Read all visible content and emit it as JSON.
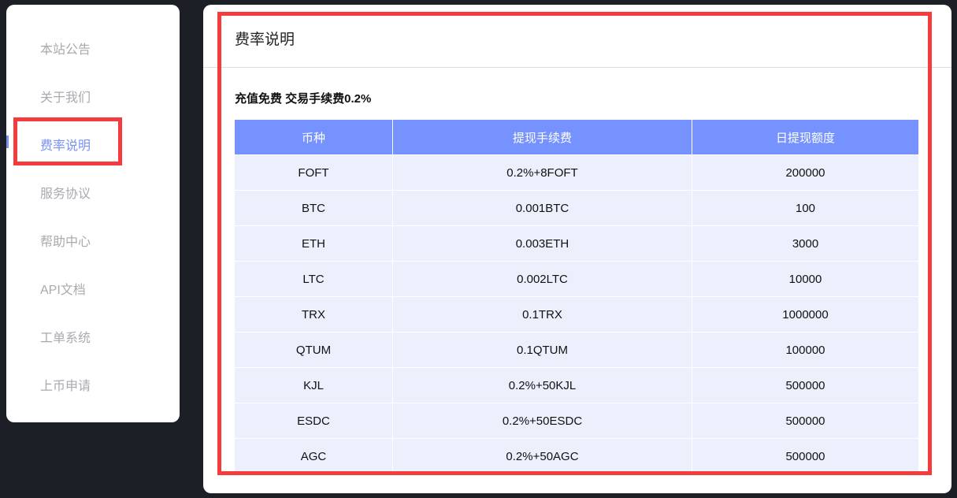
{
  "sidebar": {
    "items": [
      {
        "label": "本站公告"
      },
      {
        "label": "关于我们"
      },
      {
        "label": "费率说明",
        "active": true
      },
      {
        "label": "服务协议"
      },
      {
        "label": "帮助中心"
      },
      {
        "label": "API文档"
      },
      {
        "label": "工单系统"
      },
      {
        "label": "上币申请"
      }
    ]
  },
  "main": {
    "title": "费率说明",
    "subtitle": "充值免费 交易手续费0.2%",
    "table": {
      "headers": [
        "币种",
        "提现手续费",
        "日提现额度"
      ],
      "rows": [
        [
          "FOFT",
          "0.2%+8FOFT",
          "200000"
        ],
        [
          "BTC",
          "0.001BTC",
          "100"
        ],
        [
          "ETH",
          "0.003ETH",
          "3000"
        ],
        [
          "LTC",
          "0.002LTC",
          "10000"
        ],
        [
          "TRX",
          "0.1TRX",
          "1000000"
        ],
        [
          "QTUM",
          "0.1QTUM",
          "100000"
        ],
        [
          "KJL",
          "0.2%+50KJL",
          "500000"
        ],
        [
          "ESDC",
          "0.2%+50ESDC",
          "500000"
        ],
        [
          "AGC",
          "0.2%+50AGC",
          "500000"
        ]
      ]
    }
  },
  "colors": {
    "accent": "#7592fe",
    "highlight": "#f53b3b",
    "background": "#1d1f27"
  }
}
